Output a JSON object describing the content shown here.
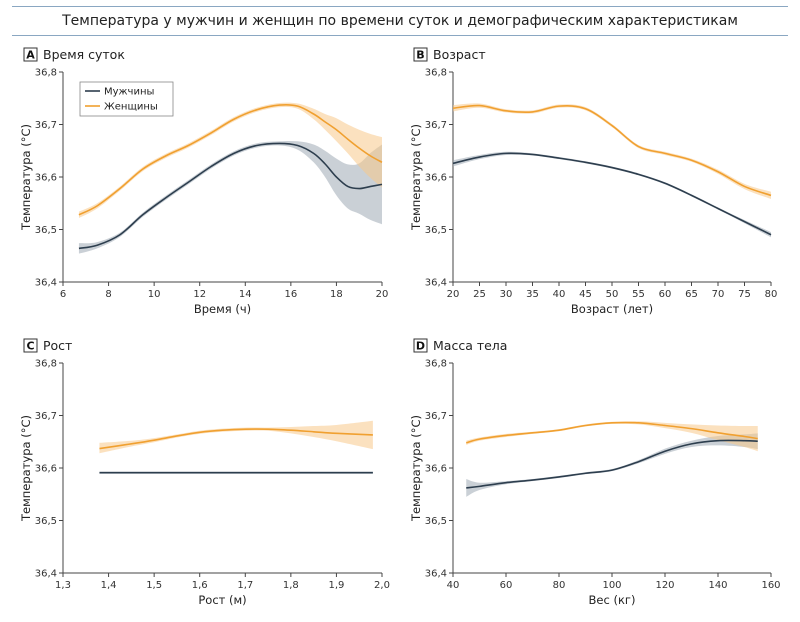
{
  "title": "Температура у мужчин и женщин по времени суток и демографическим характеристикам",
  "colors": {
    "men": "#2d3e4e",
    "women": "#f0a030",
    "men_band": "#9eaab5",
    "women_band": "#f7c98a"
  },
  "legend": {
    "men": "Мужчины",
    "women": "Женщины",
    "placement": "top-left",
    "panel": "A"
  },
  "chart_data": [
    {
      "panel": "A",
      "type": "line",
      "title": "Время суток",
      "xlabel": "Время (ч)",
      "ylabel": "Температура (°C)",
      "xlim": [
        6,
        20
      ],
      "ylim": [
        36.4,
        36.8
      ],
      "xticks": [
        6,
        8,
        10,
        12,
        14,
        16,
        18,
        20
      ],
      "xtick_labels": [
        "6",
        "8",
        "10",
        "12",
        "14",
        "16",
        "18",
        "20"
      ],
      "yticks": [
        36.4,
        36.5,
        36.6,
        36.7,
        36.8
      ],
      "ytick_labels": [
        "36,4",
        "36,5",
        "36,6",
        "36,7",
        "36,8"
      ],
      "grid": false,
      "series": [
        {
          "name": "Мужчины",
          "x": [
            6.7,
            7.5,
            8.5,
            9.5,
            10.5,
            11.5,
            12.5,
            13.5,
            14.5,
            15.5,
            16.3,
            17,
            17.5,
            18,
            18.5,
            19,
            19.5,
            20
          ],
          "y": [
            36.464,
            36.47,
            36.49,
            36.528,
            36.56,
            36.59,
            36.62,
            36.645,
            36.66,
            36.664,
            36.66,
            36.645,
            36.625,
            36.6,
            36.582,
            36.578,
            36.582,
            36.586
          ],
          "lower": [
            36.454,
            36.464,
            36.486,
            36.524,
            36.556,
            36.586,
            36.616,
            36.641,
            36.656,
            36.66,
            36.652,
            36.628,
            36.6,
            36.565,
            36.54,
            36.53,
            36.518,
            36.51
          ],
          "upper": [
            36.474,
            36.476,
            36.494,
            36.532,
            36.564,
            36.594,
            36.624,
            36.649,
            36.664,
            36.668,
            36.668,
            36.662,
            36.65,
            36.635,
            36.624,
            36.626,
            36.646,
            36.662
          ]
        },
        {
          "name": "Женщины",
          "x": [
            6.7,
            7.5,
            8.5,
            9.5,
            10.5,
            11.5,
            12.5,
            13.5,
            14.5,
            15.5,
            16.3,
            17,
            17.5,
            18,
            18.5,
            19,
            19.5,
            20
          ],
          "y": [
            36.528,
            36.545,
            36.578,
            36.615,
            36.64,
            36.66,
            36.684,
            36.71,
            36.728,
            36.737,
            36.735,
            36.72,
            36.705,
            36.69,
            36.672,
            36.655,
            36.64,
            36.628
          ],
          "lower": [
            36.522,
            36.54,
            36.574,
            36.611,
            36.636,
            36.656,
            36.68,
            36.706,
            36.724,
            36.733,
            36.73,
            36.71,
            36.69,
            36.668,
            36.645,
            36.62,
            36.598,
            36.58
          ],
          "upper": [
            36.534,
            36.55,
            36.582,
            36.619,
            36.644,
            36.664,
            36.688,
            36.714,
            36.732,
            36.741,
            36.74,
            36.73,
            36.72,
            36.712,
            36.7,
            36.69,
            36.682,
            36.676
          ]
        }
      ]
    },
    {
      "panel": "B",
      "type": "line",
      "title": "Возраст",
      "xlabel": "Возраст (лет)",
      "ylabel": "Температура (°C)",
      "xlim": [
        20,
        80
      ],
      "ylim": [
        36.4,
        36.8
      ],
      "xticks": [
        20,
        25,
        30,
        35,
        40,
        45,
        50,
        55,
        60,
        65,
        70,
        75,
        80
      ],
      "xtick_labels": [
        "20",
        "25",
        "30",
        "35",
        "40",
        "45",
        "50",
        "55",
        "60",
        "65",
        "70",
        "75",
        "80"
      ],
      "yticks": [
        36.4,
        36.5,
        36.6,
        36.7,
        36.8
      ],
      "ytick_labels": [
        "36,4",
        "36,5",
        "36,6",
        "36,7",
        "36,8"
      ],
      "grid": false,
      "series": [
        {
          "name": "Мужчины",
          "x": [
            20,
            25,
            30,
            35,
            40,
            45,
            50,
            55,
            60,
            65,
            70,
            75,
            80
          ],
          "y": [
            36.626,
            36.638,
            36.645,
            36.643,
            36.636,
            36.628,
            36.618,
            36.605,
            36.588,
            36.565,
            36.54,
            36.515,
            36.49
          ],
          "lower": [
            36.62,
            36.634,
            36.642,
            36.641,
            36.634,
            36.626,
            36.616,
            36.603,
            36.586,
            36.563,
            36.538,
            36.512,
            36.485
          ],
          "upper": [
            36.632,
            36.642,
            36.648,
            36.645,
            36.638,
            36.63,
            36.62,
            36.607,
            36.59,
            36.567,
            36.542,
            36.518,
            36.495
          ]
        },
        {
          "name": "Женщины",
          "x": [
            20,
            25,
            30,
            35,
            40,
            45,
            50,
            55,
            60,
            65,
            70,
            75,
            80
          ],
          "y": [
            36.731,
            36.736,
            36.726,
            36.724,
            36.735,
            36.73,
            36.698,
            36.658,
            36.645,
            36.632,
            36.61,
            36.582,
            36.565
          ],
          "lower": [
            36.725,
            36.732,
            36.723,
            36.721,
            36.732,
            36.727,
            36.695,
            36.655,
            36.642,
            36.629,
            36.606,
            36.577,
            36.558
          ],
          "upper": [
            36.737,
            36.74,
            36.729,
            36.727,
            36.738,
            36.733,
            36.701,
            36.661,
            36.648,
            36.635,
            36.614,
            36.587,
            36.572
          ]
        }
      ]
    },
    {
      "panel": "C",
      "type": "line",
      "title": "Рост",
      "xlabel": "Рост (м)",
      "ylabel": "Температура (°C)",
      "xlim": [
        1.3,
        2.0
      ],
      "ylim": [
        36.4,
        36.8
      ],
      "xticks": [
        1.3,
        1.4,
        1.5,
        1.6,
        1.7,
        1.8,
        1.9,
        2.0
      ],
      "xtick_labels": [
        "1,3",
        "1,4",
        "1,5",
        "1,6",
        "1,7",
        "1,8",
        "1,9",
        "2,0"
      ],
      "yticks": [
        36.4,
        36.5,
        36.6,
        36.7,
        36.8
      ],
      "ytick_labels": [
        "36,4",
        "36,5",
        "36,6",
        "36,7",
        "36,8"
      ],
      "grid": false,
      "series": [
        {
          "name": "Мужчины",
          "x": [
            1.38,
            1.98
          ],
          "y": [
            36.591,
            36.591
          ],
          "lower": [
            36.589,
            36.589
          ],
          "upper": [
            36.593,
            36.593
          ]
        },
        {
          "name": "Женщины",
          "x": [
            1.38,
            1.45,
            1.5,
            1.55,
            1.6,
            1.65,
            1.7,
            1.75,
            1.8,
            1.85,
            1.9,
            1.98
          ],
          "y": [
            36.637,
            36.646,
            36.653,
            36.661,
            36.668,
            36.672,
            36.674,
            36.674,
            36.672,
            36.669,
            36.666,
            36.663
          ],
          "lower": [
            36.628,
            36.641,
            36.649,
            36.658,
            36.665,
            36.669,
            36.671,
            36.671,
            36.666,
            36.659,
            36.651,
            36.636
          ],
          "upper": [
            36.648,
            36.652,
            36.657,
            36.664,
            36.671,
            36.675,
            36.677,
            36.677,
            36.678,
            36.68,
            36.682,
            36.69
          ]
        }
      ]
    },
    {
      "panel": "D",
      "type": "line",
      "title": "Масса тела",
      "xlabel": "Вес (кг)",
      "ylabel": "Температура (°C)",
      "xlim": [
        40,
        160
      ],
      "ylim": [
        36.4,
        36.8
      ],
      "xticks": [
        40,
        60,
        80,
        100,
        120,
        140,
        160
      ],
      "xtick_labels": [
        "40",
        "60",
        "80",
        "100",
        "120",
        "140",
        "160"
      ],
      "yticks": [
        36.4,
        36.5,
        36.6,
        36.7,
        36.8
      ],
      "ytick_labels": [
        "36,4",
        "36,5",
        "36,6",
        "36,7",
        "36,8"
      ],
      "grid": false,
      "series": [
        {
          "name": "Мужчины",
          "x": [
            45,
            50,
            60,
            70,
            80,
            90,
            100,
            110,
            120,
            130,
            140,
            150,
            155
          ],
          "y": [
            36.562,
            36.565,
            36.572,
            36.577,
            36.583,
            36.59,
            36.596,
            36.612,
            36.632,
            36.646,
            36.652,
            36.652,
            36.651
          ],
          "lower": [
            36.545,
            36.558,
            36.569,
            36.575,
            36.581,
            36.588,
            36.594,
            36.609,
            36.627,
            36.64,
            36.643,
            36.64,
            36.636
          ],
          "upper": [
            36.579,
            36.572,
            36.575,
            36.579,
            36.585,
            36.592,
            36.598,
            36.615,
            36.637,
            36.652,
            36.661,
            36.664,
            36.666
          ]
        },
        {
          "name": "Женщины",
          "x": [
            45,
            50,
            60,
            70,
            80,
            90,
            100,
            110,
            120,
            130,
            140,
            150,
            155
          ],
          "y": [
            36.648,
            36.655,
            36.662,
            36.667,
            36.672,
            36.681,
            36.686,
            36.686,
            36.681,
            36.675,
            36.667,
            36.66,
            36.656
          ],
          "lower": [
            36.644,
            36.652,
            36.659,
            36.665,
            36.67,
            36.679,
            36.684,
            36.683,
            36.676,
            36.667,
            36.653,
            36.64,
            36.632
          ],
          "upper": [
            36.652,
            36.658,
            36.665,
            36.669,
            36.674,
            36.683,
            36.688,
            36.689,
            36.686,
            36.683,
            36.681,
            36.68,
            36.68
          ]
        }
      ]
    }
  ]
}
